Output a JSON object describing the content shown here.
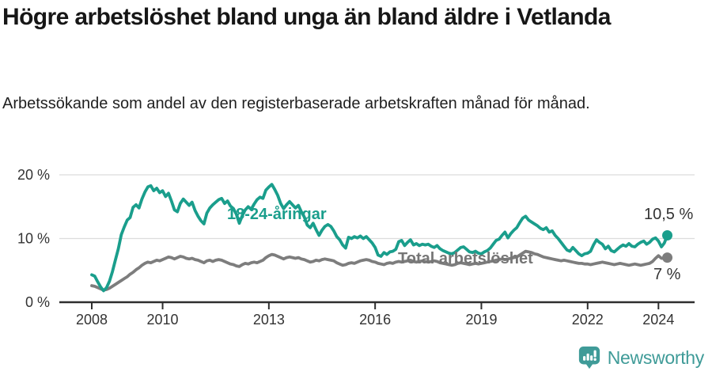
{
  "footer": {
    "brand": "Newsworthy",
    "logo_icon": "newsworthy-bubble-chart-icon"
  },
  "colors": {
    "youth_line": "#1a9e8c",
    "total_line": "#7d7d7d",
    "total_label": "#767676",
    "axis": "#2e2e2e",
    "grid": "#dcdcdc",
    "tick_text": "#333333",
    "brand_teal": "#3f9b98"
  },
  "chart_data": {
    "type": "line",
    "title": "Högre arbetslöshet bland unga än bland äldre i Vetlanda",
    "subtitle": "Arbetssökande som andel av den registerbaserade arbetskraften månad för månad.",
    "xlabel": "",
    "ylabel": "",
    "x_start": 2008.0,
    "x_step_months": 1,
    "x_end": 2024.25,
    "ylim": [
      0,
      21
    ],
    "grid": "horizontal-only",
    "legend_position": "inline-labels",
    "yticks": [
      {
        "value": 0,
        "label": "0 %"
      },
      {
        "value": 10,
        "label": "10 %"
      },
      {
        "value": 20,
        "label": "20 %"
      }
    ],
    "xticks": [
      {
        "value": 2008,
        "label": "2008"
      },
      {
        "value": 2010,
        "label": "2010"
      },
      {
        "value": 2013,
        "label": "2013"
      },
      {
        "value": 2016,
        "label": "2016"
      },
      {
        "value": 2019,
        "label": "2019"
      },
      {
        "value": 2022,
        "label": "2022"
      },
      {
        "value": 2024,
        "label": "2024"
      }
    ],
    "series": [
      {
        "name": "18-24-åringar",
        "color": "#1a9e8c",
        "end_label": "10,5 %",
        "end_value": 10.5,
        "values": [
          4.3,
          4.1,
          3.2,
          2.4,
          1.8,
          2.3,
          3.3,
          4.8,
          6.6,
          8.4,
          10.6,
          11.8,
          12.9,
          13.3,
          14.9,
          15.3,
          14.8,
          16.2,
          17.3,
          18.1,
          18.3,
          17.5,
          17.9,
          17.2,
          17.5,
          16.6,
          17.1,
          15.9,
          14.5,
          14.2,
          15.5,
          16.2,
          15.7,
          15.2,
          15.7,
          14.4,
          13.5,
          12.8,
          12.3,
          14.0,
          14.8,
          15.3,
          15.7,
          16.1,
          16.3,
          15.5,
          15.9,
          15.1,
          14.7,
          13.8,
          12.4,
          13.6,
          14.5,
          15.0,
          14.6,
          15.4,
          16.1,
          16.5,
          16.3,
          17.6,
          18.1,
          18.5,
          17.7,
          16.8,
          15.5,
          14.7,
          15.3,
          15.8,
          15.3,
          14.8,
          15.2,
          14.2,
          13.4,
          12.1,
          11.7,
          12.4,
          11.4,
          10.5,
          11.3,
          11.9,
          12.2,
          11.9,
          11.2,
          10.3,
          9.8,
          9.0,
          8.5,
          10.2,
          10.0,
          10.3,
          10.1,
          10.4,
          10.0,
          10.3,
          9.8,
          9.3,
          8.6,
          7.4,
          7.2,
          7.8,
          7.5,
          7.9,
          8.0,
          8.3,
          9.5,
          9.7,
          8.9,
          9.4,
          9.8,
          9.0,
          9.2,
          8.9,
          9.1,
          9.0,
          9.1,
          8.8,
          8.6,
          8.9,
          8.4,
          8.1,
          7.9,
          7.7,
          7.6,
          7.8,
          8.2,
          8.6,
          8.7,
          8.3,
          7.9,
          7.8,
          8.0,
          7.7,
          7.6,
          7.9,
          8.1,
          8.5,
          9.1,
          9.7,
          9.9,
          10.5,
          11.0,
          10.1,
          10.8,
          11.3,
          11.7,
          12.5,
          13.2,
          13.5,
          12.9,
          12.6,
          12.3,
          12.0,
          11.6,
          11.4,
          11.7,
          11.0,
          11.2,
          10.5,
          10.0,
          9.4,
          8.8,
          8.2,
          8.0,
          8.6,
          8.1,
          7.6,
          7.3,
          7.6,
          7.7,
          8.0,
          9.0,
          9.8,
          9.4,
          9.1,
          8.4,
          8.8,
          8.1,
          7.9,
          8.3,
          8.7,
          9.0,
          8.8,
          9.2,
          8.8,
          8.7,
          9.1,
          9.4,
          9.6,
          9.1,
          9.4,
          9.9,
          10.1,
          9.6,
          8.7,
          9.3,
          10.5
        ]
      },
      {
        "name": "Total arbetslöshet",
        "color": "#7d7d7d",
        "end_label": "7 %",
        "end_value": 7.0,
        "values": [
          2.6,
          2.5,
          2.3,
          2.1,
          1.9,
          2.0,
          2.2,
          2.5,
          2.8,
          3.1,
          3.4,
          3.7,
          4.0,
          4.4,
          4.7,
          5.1,
          5.4,
          5.8,
          6.1,
          6.3,
          6.2,
          6.4,
          6.6,
          6.5,
          6.7,
          6.9,
          7.1,
          7.0,
          6.8,
          7.0,
          7.2,
          7.1,
          6.9,
          6.8,
          6.9,
          6.7,
          6.6,
          6.4,
          6.2,
          6.5,
          6.6,
          6.4,
          6.6,
          6.7,
          6.6,
          6.4,
          6.2,
          6.0,
          5.9,
          5.7,
          5.6,
          5.9,
          6.1,
          6.0,
          6.2,
          6.3,
          6.2,
          6.4,
          6.6,
          7.0,
          7.3,
          7.5,
          7.4,
          7.2,
          7.0,
          6.8,
          7.0,
          7.1,
          7.0,
          6.9,
          7.0,
          6.8,
          6.7,
          6.5,
          6.3,
          6.4,
          6.6,
          6.5,
          6.7,
          6.8,
          6.7,
          6.6,
          6.5,
          6.2,
          6.0,
          5.8,
          5.9,
          6.1,
          6.2,
          6.1,
          6.3,
          6.5,
          6.6,
          6.7,
          6.6,
          6.4,
          6.3,
          6.1,
          6.0,
          5.9,
          6.1,
          6.2,
          6.1,
          6.3,
          6.4,
          6.3,
          6.4,
          6.5,
          6.6,
          6.4,
          6.3,
          6.4,
          6.5,
          6.4,
          6.3,
          6.4,
          6.5,
          6.4,
          6.2,
          6.1,
          6.0,
          5.9,
          5.8,
          5.9,
          6.1,
          6.2,
          6.1,
          6.0,
          5.9,
          6.0,
          6.1,
          6.0,
          6.1,
          6.2,
          6.3,
          6.4,
          6.5,
          6.6,
          6.7,
          6.8,
          6.7,
          6.8,
          6.9,
          7.0,
          7.1,
          7.4,
          7.7,
          8.0,
          7.9,
          7.8,
          7.6,
          7.5,
          7.3,
          7.1,
          7.0,
          6.9,
          6.8,
          6.7,
          6.6,
          6.5,
          6.6,
          6.5,
          6.4,
          6.3,
          6.2,
          6.1,
          6.1,
          6.0,
          6.0,
          5.9,
          6.0,
          6.1,
          6.2,
          6.3,
          6.2,
          6.1,
          6.0,
          5.9,
          6.0,
          6.1,
          6.0,
          5.9,
          5.8,
          5.9,
          6.0,
          5.9,
          5.8,
          5.9,
          6.0,
          6.1,
          6.4,
          6.9,
          7.3,
          6.9,
          6.9,
          7.0
        ]
      }
    ]
  }
}
